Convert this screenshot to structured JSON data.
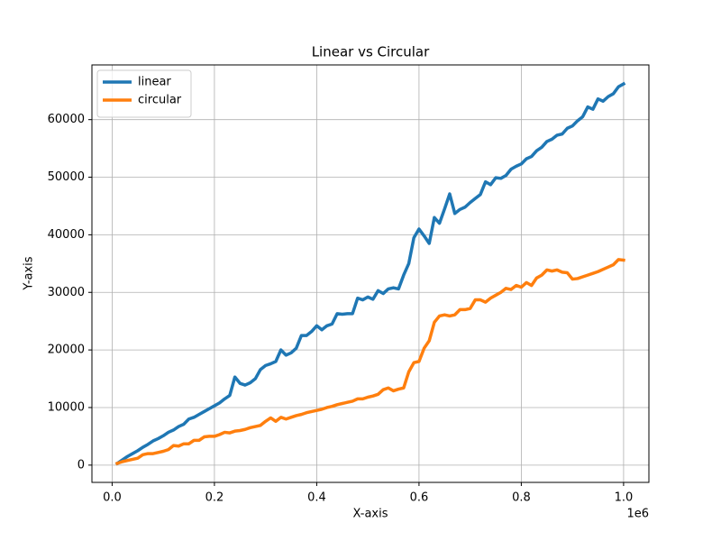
{
  "chart_data": {
    "type": "line",
    "title": "Linear vs Circular",
    "x_label": "X-axis",
    "y_label": "Y-axis",
    "x_offset_text": "1e6",
    "x": [
      10000,
      20000,
      30000,
      40000,
      50000,
      60000,
      70000,
      80000,
      90000,
      100000,
      110000,
      120000,
      130000,
      140000,
      150000,
      160000,
      170000,
      180000,
      190000,
      200000,
      210000,
      220000,
      230000,
      240000,
      250000,
      260000,
      270000,
      280000,
      290000,
      300000,
      310000,
      320000,
      330000,
      340000,
      350000,
      360000,
      370000,
      380000,
      390000,
      400000,
      410000,
      420000,
      430000,
      440000,
      450000,
      460000,
      470000,
      480000,
      490000,
      500000,
      510000,
      520000,
      530000,
      540000,
      550000,
      560000,
      570000,
      580000,
      590000,
      600000,
      610000,
      620000,
      630000,
      640000,
      650000,
      660000,
      670000,
      680000,
      690000,
      700000,
      710000,
      720000,
      730000,
      740000,
      750000,
      760000,
      770000,
      780000,
      790000,
      800000,
      810000,
      820000,
      830000,
      840000,
      850000,
      860000,
      870000,
      880000,
      890000,
      900000,
      910000,
      920000,
      930000,
      940000,
      950000,
      960000,
      970000,
      980000,
      990000,
      1000000
    ],
    "series": [
      {
        "name": "linear",
        "color": "#1f77b4",
        "values": [
          300,
          900,
          1500,
          2000,
          2500,
          3100,
          3600,
          4200,
          4600,
          5100,
          5700,
          6100,
          6700,
          7100,
          8000,
          8300,
          8800,
          9300,
          9800,
          10300,
          10800,
          11500,
          12100,
          15300,
          14200,
          13900,
          14300,
          15000,
          16600,
          17300,
          17600,
          18000,
          20000,
          19100,
          19500,
          20300,
          22500,
          22500,
          23200,
          24200,
          23500,
          24200,
          24500,
          26300,
          26200,
          26300,
          26300,
          29000,
          28700,
          29200,
          28800,
          30300,
          29800,
          30600,
          30800,
          30600,
          33000,
          35000,
          39500,
          41000,
          39800,
          38500,
          43000,
          42000,
          44500,
          47100,
          43700,
          44400,
          44800,
          45600,
          46300,
          47000,
          49200,
          48700,
          49900,
          49800,
          50300,
          51400,
          51900,
          52300,
          53200,
          53600,
          54600,
          55200,
          56200,
          56600,
          57300,
          57500,
          58500,
          58900,
          59800,
          60500,
          62200,
          61800,
          63600,
          63200,
          64000,
          64500,
          65700,
          66200
        ]
      },
      {
        "name": "circular",
        "color": "#ff7f0e",
        "values": [
          300,
          600,
          800,
          1000,
          1200,
          1800,
          2000,
          2000,
          2200,
          2400,
          2700,
          3400,
          3300,
          3700,
          3700,
          4300,
          4300,
          4900,
          5000,
          5000,
          5300,
          5700,
          5600,
          5900,
          6000,
          6200,
          6500,
          6700,
          6900,
          7600,
          8200,
          7600,
          8300,
          8000,
          8300,
          8600,
          8800,
          9100,
          9300,
          9500,
          9700,
          10000,
          10200,
          10500,
          10700,
          10900,
          11100,
          11500,
          11500,
          11800,
          12000,
          12300,
          13100,
          13400,
          12900,
          13200,
          13400,
          16200,
          17800,
          18000,
          20300,
          21600,
          24800,
          25900,
          26100,
          25900,
          26100,
          27000,
          27000,
          27200,
          28700,
          28700,
          28300,
          29000,
          29500,
          30000,
          30700,
          30500,
          31200,
          30900,
          31700,
          31200,
          32500,
          33000,
          33900,
          33700,
          33900,
          33500,
          33400,
          32300,
          32400,
          32700,
          33000,
          33300,
          33600,
          34000,
          34400,
          34800,
          35700,
          35600
        ]
      }
    ],
    "xlim": [
      -39500,
      1049500
    ],
    "xticks": [
      {
        "value": 0,
        "label": "0.0"
      },
      {
        "value": 200000,
        "label": "0.2"
      },
      {
        "value": 400000,
        "label": "0.4"
      },
      {
        "value": 600000,
        "label": "0.6"
      },
      {
        "value": 800000,
        "label": "0.8"
      },
      {
        "value": 1000000,
        "label": "1.0"
      }
    ],
    "ylim": [
      -3000,
      69500
    ],
    "yticks": [
      0,
      10000,
      20000,
      30000,
      40000,
      50000,
      60000
    ],
    "grid": true,
    "legend": "upper left"
  }
}
